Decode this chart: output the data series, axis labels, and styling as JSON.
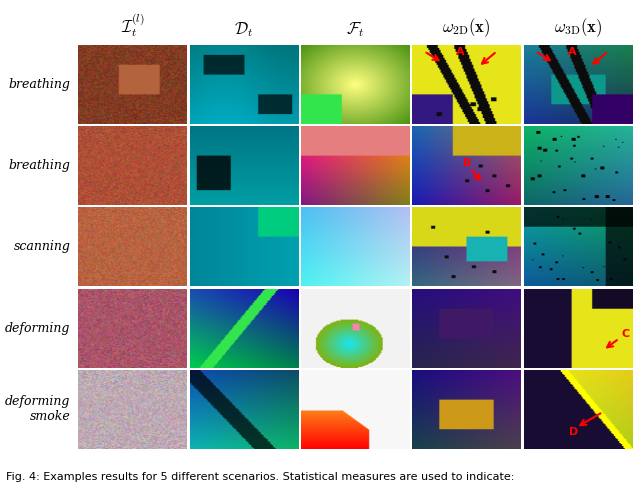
{
  "col_headers": [
    "$\\mathcal{I}_t^{(l)}$",
    "$\\mathcal{D}_t$",
    "$\\mathcal{F}_t$",
    "$\\omega_{\\mathrm{2D}}(\\mathbf{x})$",
    "$\\omega_{\\mathrm{3D}}(\\mathbf{x})$"
  ],
  "row_labels": [
    "breathing",
    "breathing",
    "scanning",
    "deforming",
    "deforming\nsmoke"
  ],
  "n_rows": 5,
  "n_cols": 5,
  "fig_width": 6.4,
  "fig_height": 4.84,
  "background_color": "#ffffff",
  "caption": "Fig. 4: Examples results for 5 different scenarios. Statistical measures are used to indicate:",
  "header_fontsize": 12,
  "label_fontsize": 9,
  "caption_fontsize": 8
}
